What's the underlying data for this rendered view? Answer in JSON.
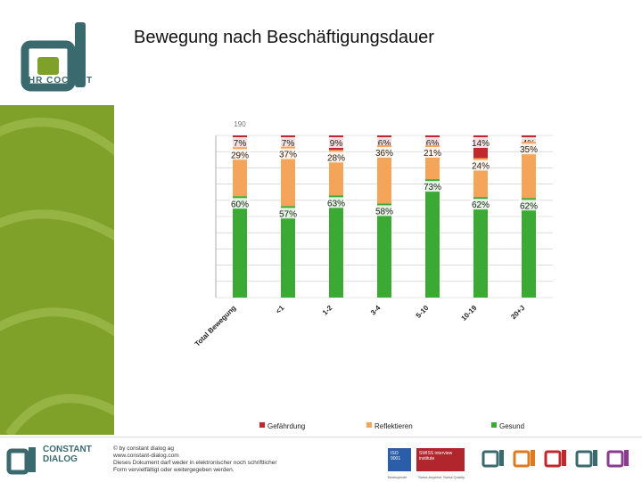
{
  "brand": {
    "name": "HR COCKPIT",
    "company_line1": "CONSTANT",
    "company_line2": "DIALOG"
  },
  "title": "Bewegung nach Beschäftigungsdauer",
  "footer": {
    "copyright": "© by constant dialog ag",
    "website": "www.constant-dialog.com",
    "notice1": "Dieses Dokument darf weder in elektronischer noch schriftlicher",
    "notice2": "Form vervielfältigt oder weitergegeben werden.",
    "badge1": "ISO 9001",
    "badge2": "SWISS interview institute",
    "badge_caps": [
      "Bedingende",
      "Swiss Angebot",
      "Swiss Quality"
    ]
  },
  "colors": {
    "danger": "#c0282e",
    "reflect": "#f5a55a",
    "healthy": "#3aaa35",
    "sidebar": "#7fa12a",
    "brand": "#3b6a6e"
  },
  "chart_data": {
    "type": "bar",
    "stacked": true,
    "categories": [
      "Total Bewegung",
      "<1",
      "1-2",
      "3-4",
      "5-10",
      "10-19",
      "20+J"
    ],
    "counts": [
      "190",
      "",
      "",
      "",
      "",
      "",
      ""
    ],
    "series": [
      {
        "name": "Gefährdung",
        "values": [
          7,
          7,
          9,
          6,
          6,
          14,
          4
        ],
        "labels": [
          "7%",
          "7%",
          "9%",
          "6%",
          "6%",
          "14%",
          "4%"
        ]
      },
      {
        "name": "Reflektieren",
        "values": [
          29,
          37,
          28,
          36,
          21,
          24,
          35
        ],
        "labels": [
          "29%",
          "37%",
          "28%",
          "36%",
          "21%",
          "24%",
          "35%"
        ]
      },
      {
        "name": "Gesund",
        "values": [
          60,
          57,
          63,
          58,
          73,
          62,
          62
        ],
        "labels": [
          "60%",
          "57%",
          "63%",
          "58%",
          "73%",
          "62%",
          "62%"
        ]
      }
    ],
    "ylim": [
      0,
      100
    ],
    "legend": "bottom"
  }
}
